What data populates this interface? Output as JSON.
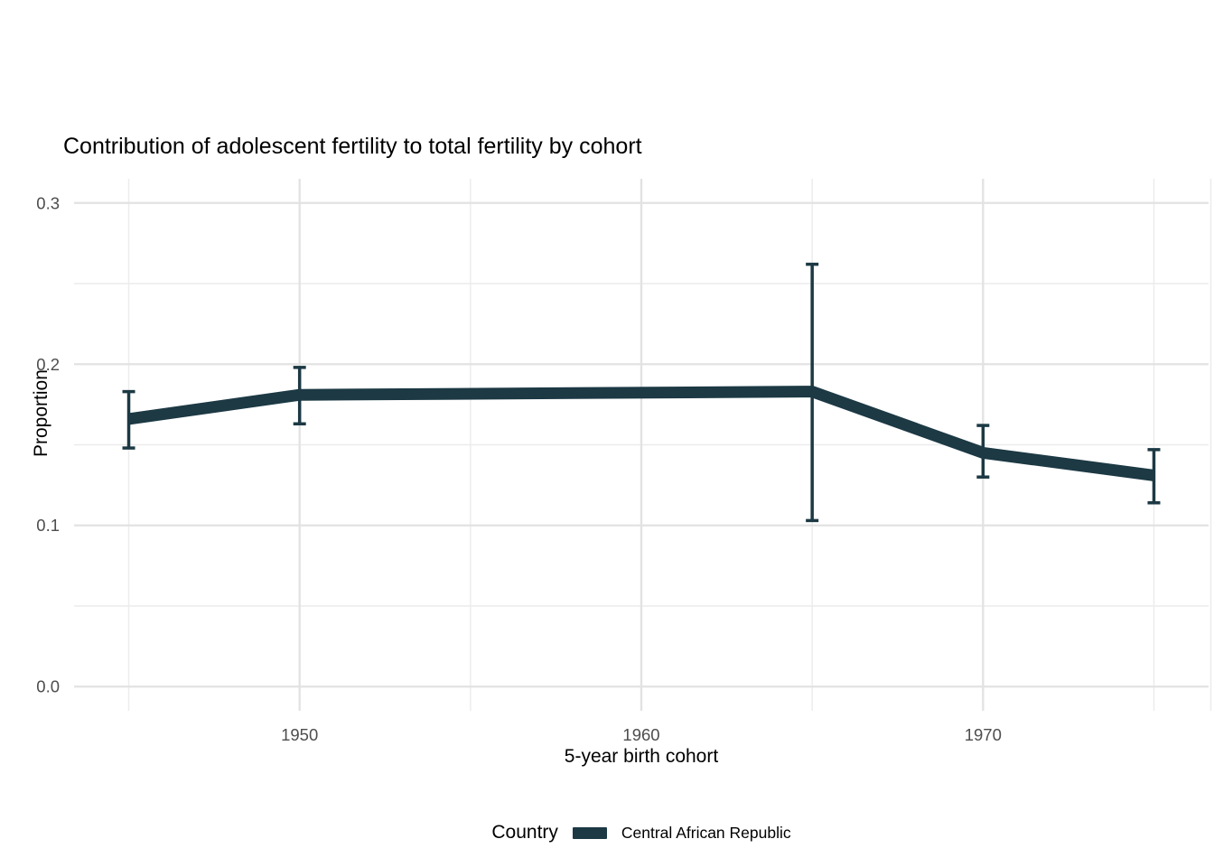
{
  "chart_data": {
    "type": "line",
    "title": "Contribution of adolescent fertility to total fertility by cohort",
    "x_axis": {
      "title": "5-year birth cohort",
      "major_ticks": [
        {
          "value": 1950,
          "label": "1950"
        },
        {
          "value": 1960,
          "label": "1960"
        },
        {
          "value": 1970,
          "label": "1970"
        }
      ],
      "minor_ticks": [
        1945,
        1955,
        1965,
        1975
      ],
      "range": [
        1943.4,
        1976.6
      ]
    },
    "y_axis": {
      "title": "Proportion",
      "major_ticks": [
        {
          "value": 0.0,
          "label": "0.0"
        },
        {
          "value": 0.1,
          "label": "0.1"
        },
        {
          "value": 0.2,
          "label": "0.2"
        },
        {
          "value": 0.3,
          "label": "0.3"
        }
      ],
      "minor_ticks": [
        0.05,
        0.15,
        0.25
      ],
      "range": [
        -0.015,
        0.315
      ]
    },
    "grid": true,
    "legend": {
      "title": "Country",
      "position": "bottom",
      "items": [
        {
          "label": "Central African Republic",
          "color": "#1c3944"
        }
      ]
    },
    "series": [
      {
        "name": "Central African Republic",
        "color": "#1c3944",
        "points": [
          {
            "x": 1945,
            "y": 0.166,
            "ymin": 0.148,
            "ymax": 0.183
          },
          {
            "x": 1950,
            "y": 0.181,
            "ymin": 0.163,
            "ymax": 0.198
          },
          {
            "x": 1965,
            "y": 0.183,
            "ymin": 0.103,
            "ymax": 0.262
          },
          {
            "x": 1970,
            "y": 0.145,
            "ymin": 0.13,
            "ymax": 0.162
          },
          {
            "x": 1975,
            "y": 0.131,
            "ymin": 0.114,
            "ymax": 0.147
          }
        ]
      }
    ]
  }
}
